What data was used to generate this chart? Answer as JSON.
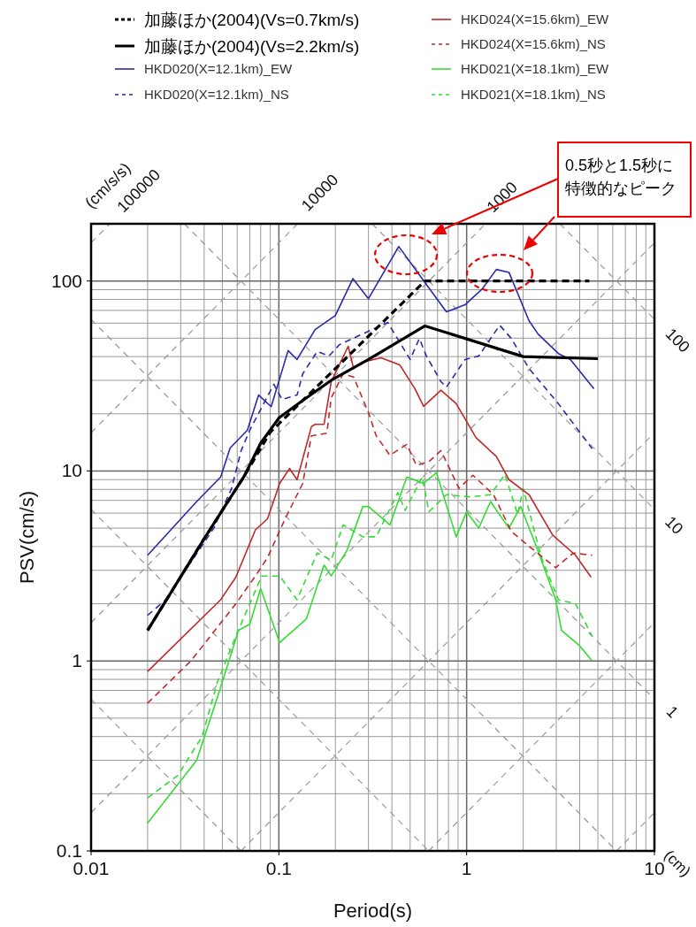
{
  "chart_data": {
    "type": "line",
    "xlabel": "Period(s)",
    "ylabel": "PSV(cm/s)",
    "log": "xy",
    "xlim": [
      0.01,
      10
    ],
    "ylim": [
      0.1,
      200
    ],
    "xticks": [
      0.01,
      0.1,
      1,
      10
    ],
    "yticks": [
      0.1,
      1,
      10,
      100
    ],
    "grid": true,
    "legend": "top",
    "annotations": [
      "(cm/s/s)",
      "100000",
      "10000",
      "1000",
      "100",
      "10",
      "1",
      "(cm)",
      "0.5秒と1.5秒に特徴的なピーク"
    ],
    "series": [
      {
        "name": "加藤ほか(2004)(Vs=0.7km/s)",
        "color": "#000000",
        "line_style": "dashed",
        "x": [
          0.02,
          0.04,
          0.065,
          0.09,
          0.6,
          4.5
        ],
        "values": [
          1.45,
          4.4,
          9.3,
          16,
          100,
          100
        ]
      },
      {
        "name": "加藤ほか(2004)(Vs=2.2km/s)",
        "color": "#000000",
        "line_style": "solid",
        "x": [
          0.02,
          0.04,
          0.065,
          0.08,
          0.1,
          0.13,
          0.19,
          0.3,
          0.6,
          2,
          5
        ],
        "values": [
          1.45,
          4.4,
          9.3,
          14,
          19,
          23,
          30,
          38.6,
          58,
          40,
          39
        ]
      },
      {
        "name": "HKD020(X=12.1km)_EW",
        "color": "#2a2aa8",
        "line_style": "solid",
        "x": [
          0.02,
          0.0365,
          0.049,
          0.055,
          0.068,
          0.078,
          0.091,
          0.112,
          0.125,
          0.156,
          0.2,
          0.248,
          0.3,
          0.435,
          0.587,
          0.78,
          0.98,
          1.21,
          1.44,
          1.68,
          2.15,
          2.4,
          3.08,
          3.57,
          4.76
        ],
        "values": [
          3.6,
          6.9,
          9.3,
          13.2,
          16.4,
          25.1,
          21.8,
          43,
          38.6,
          55.5,
          65.9,
          103,
          80.7,
          152,
          101,
          68.8,
          74.9,
          90.8,
          115,
          111,
          61.7,
          52.6,
          41.5,
          38.6,
          27.1
        ]
      },
      {
        "name": "HKD020(X=12.1km)_NS",
        "color": "#2a2aa8",
        "line_style": "dashed",
        "x": [
          0.02,
          0.025,
          0.045,
          0.056,
          0.063,
          0.07,
          0.094,
          0.104,
          0.125,
          0.134,
          0.16,
          0.185,
          0.21,
          0.38,
          0.5,
          0.56,
          0.61,
          0.73,
          0.78,
          0.98,
          1.16,
          1.5,
          1.73,
          2.15,
          3.08,
          4.66
        ],
        "values": [
          1.74,
          2.1,
          5.0,
          8.1,
          12.8,
          16.4,
          28.6,
          23.8,
          25.1,
          32.5,
          42.5,
          40.3,
          46.2,
          60.5,
          38.6,
          49.8,
          40.3,
          29.5,
          27.6,
          38.6,
          40.3,
          58.5,
          49.8,
          34.6,
          22.6,
          13.1
        ]
      },
      {
        "name": "HKD024(X=15.6km)_EW",
        "color": "#c0282a",
        "line_style": "solid",
        "x": [
          0.02,
          0.049,
          0.059,
          0.075,
          0.087,
          0.101,
          0.114,
          0.125,
          0.149,
          0.156,
          0.174,
          0.19,
          0.234,
          0.25,
          0.276,
          0.35,
          0.44,
          0.53,
          0.59,
          0.73,
          0.88,
          1.12,
          1.44,
          1.68,
          2.15,
          2.87,
          3.8,
          4.6
        ],
        "values": [
          0.88,
          2.1,
          2.76,
          4.9,
          5.6,
          8.6,
          10.3,
          9.0,
          17.1,
          17.6,
          17.6,
          29.5,
          45.3,
          34.6,
          37.3,
          39.4,
          36.2,
          27.1,
          21.9,
          26.6,
          22.6,
          15.0,
          11.9,
          9.0,
          7.5,
          4.6,
          3.6,
          2.76
        ]
      },
      {
        "name": "HKD024(X=15.6km)_NS",
        "color": "#c0282a",
        "line_style": "dashed",
        "x": [
          0.02,
          0.034,
          0.059,
          0.075,
          0.087,
          0.108,
          0.134,
          0.149,
          0.18,
          0.19,
          0.22,
          0.25,
          0.3,
          0.33,
          0.39,
          0.48,
          0.54,
          0.63,
          0.73,
          0.91,
          1.08,
          1.39,
          1.73,
          2.3,
          2.98,
          3.7,
          4.66
        ],
        "values": [
          0.6,
          1.0,
          2.0,
          2.8,
          3.5,
          5.6,
          8.6,
          15.3,
          15.8,
          24.2,
          32.5,
          31.2,
          20.3,
          15.3,
          12.1,
          13.8,
          10.7,
          11.2,
          12.8,
          8.1,
          9.5,
          7.5,
          4.8,
          3.8,
          3.1,
          3.7,
          3.6
        ]
      },
      {
        "name": "HKD021(X=18.1km)_EW",
        "color": "#33dd33",
        "line_style": "solid",
        "x": [
          0.02,
          0.0365,
          0.047,
          0.061,
          0.07,
          0.08,
          0.101,
          0.14,
          0.174,
          0.19,
          0.23,
          0.28,
          0.3,
          0.39,
          0.48,
          0.59,
          0.69,
          0.88,
          1.0,
          1.16,
          1.34,
          1.68,
          1.94,
          2.4,
          2.98,
          3.2,
          4.0,
          4.66
        ],
        "values": [
          0.14,
          0.3,
          0.64,
          1.45,
          1.56,
          2.4,
          1.25,
          1.66,
          3.2,
          2.8,
          3.8,
          6.5,
          6.5,
          5.2,
          9.3,
          8.6,
          9.8,
          4.5,
          6.1,
          5.0,
          6.9,
          5.0,
          6.5,
          3.8,
          2.1,
          1.45,
          1.2,
          1.0
        ]
      },
      {
        "name": "HKD021(X=18.1km)_NS",
        "color": "#33dd33",
        "line_style": "dashed",
        "x": [
          0.02,
          0.029,
          0.039,
          0.047,
          0.059,
          0.081,
          0.101,
          0.125,
          0.16,
          0.19,
          0.22,
          0.28,
          0.33,
          0.43,
          0.47,
          0.58,
          0.63,
          0.78,
          1.04,
          1.34,
          1.6,
          1.87,
          2.0,
          2.5,
          3.08,
          3.8,
          4.66
        ],
        "values": [
          0.19,
          0.25,
          0.4,
          0.77,
          1.35,
          2.8,
          2.8,
          2.1,
          3.7,
          3.4,
          5.2,
          4.5,
          4.5,
          7.7,
          6.2,
          9.3,
          6.1,
          7.5,
          7.3,
          7.5,
          9.6,
          5.9,
          8.1,
          3.5,
          2.1,
          2.0,
          1.35
        ]
      },
      {
        "color": "#999999",
        "line_style": "dashed",
        "x": [
          6.28,
          10
        ],
        "values": [
          0.1,
          0.159
        ]
      },
      {
        "color": "#999999",
        "line_style": "dashed",
        "x": [
          0.628,
          10
        ],
        "values": [
          0.1,
          1.59
        ]
      },
      {
        "color": "#999999",
        "line_style": "dashed",
        "x": [
          0.0628,
          10
        ],
        "values": [
          0.1,
          15.9
        ]
      },
      {
        "color": "#999999",
        "line_style": "dashed",
        "x": [
          0.01,
          10
        ],
        "values": [
          0.159,
          159
        ]
      },
      {
        "color": "#999999",
        "line_style": "dashed",
        "x": [
          0.01,
          1.26
        ],
        "values": [
          1.59,
          200
        ]
      },
      {
        "color": "#999999",
        "line_style": "dashed",
        "x": [
          0.01,
          0.126
        ],
        "values": [
          15.9,
          200
        ]
      },
      {
        "color": "#999999",
        "line_style": "dashed",
        "x": [
          0.01,
          0.0126
        ],
        "values": [
          159,
          200
        ]
      },
      {
        "color": "#999999",
        "line_style": "dashed",
        "x": [
          0.01,
          0.0628
        ],
        "values": [
          0.628,
          0.1
        ]
      },
      {
        "color": "#999999",
        "line_style": "dashed",
        "x": [
          0.01,
          0.628
        ],
        "values": [
          6.28,
          0.1
        ]
      },
      {
        "color": "#999999",
        "line_style": "dashed",
        "x": [
          0.01,
          6.28
        ],
        "values": [
          62.8,
          0.1
        ]
      },
      {
        "color": "#999999",
        "line_style": "dashed",
        "x": [
          0.0314,
          10
        ],
        "values": [
          200,
          0.628
        ]
      },
      {
        "color": "#999999",
        "line_style": "dashed",
        "x": [
          0.314,
          10
        ],
        "values": [
          200,
          6.28
        ]
      },
      {
        "color": "#999999",
        "line_style": "dashed",
        "x": [
          3.14,
          10
        ],
        "values": [
          200,
          62.8
        ]
      }
    ]
  }
}
